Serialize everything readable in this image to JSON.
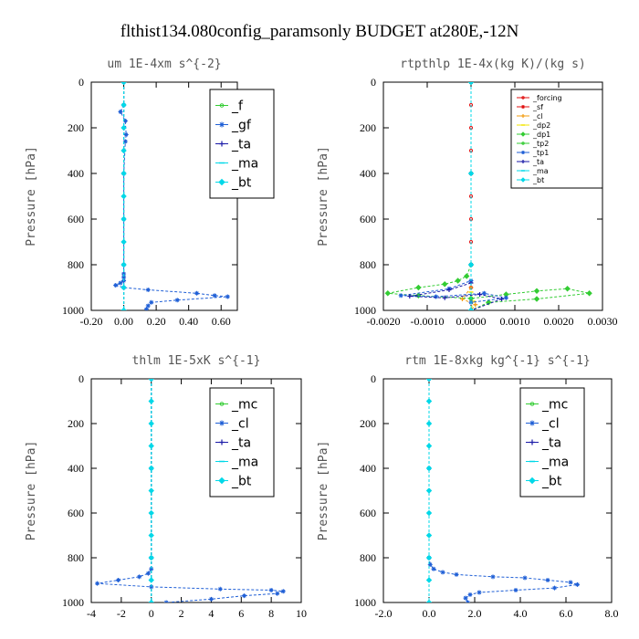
{
  "suptitle": "flthist134.080config_paramsonly  BUDGET at280E,-12N",
  "colors": {
    "green": "#33cc33",
    "blue": "#1f5fd6",
    "cyan": "#00d8e8",
    "red": "#e01010",
    "orange": "#f39c12",
    "yellow": "#f2e600",
    "navy": "#1a1aa8",
    "darkblue": "#1414c8"
  },
  "chart_data": [
    {
      "type": "line",
      "title": "um  1E-4xm s^{-2}",
      "ylabel": "Pressure [hPa]",
      "xlim": [
        -0.2,
        0.7
      ],
      "ylim": [
        1000,
        0
      ],
      "xticks": [
        -0.2,
        0.0,
        0.2,
        0.4,
        0.6
      ],
      "xtick_labels": [
        "-0.20",
        "0.00",
        "0.20",
        "0.40",
        "0.60"
      ],
      "yticks": [
        0,
        200,
        400,
        600,
        800,
        1000
      ],
      "ytick_labels": [
        "0",
        "200",
        "400",
        "600",
        "800",
        "1000"
      ],
      "legend_position": "top-right",
      "series": [
        {
          "name": "_f",
          "color": "green",
          "x": [
            0,
            0,
            0,
            0,
            0,
            0,
            0,
            0,
            0,
            0,
            0
          ],
          "y": [
            0,
            100,
            200,
            300,
            400,
            500,
            600,
            700,
            800,
            900,
            1000
          ]
        },
        {
          "name": "_gf",
          "color": "blue",
          "x": [
            0,
            0,
            -0.02,
            0.01,
            0.015,
            0.01,
            0,
            0,
            0,
            0,
            0,
            0,
            -0.02,
            -0.05,
            0.0,
            0.15,
            0.45,
            0.56,
            0.64,
            0.33,
            0.17,
            0.15,
            0.14
          ],
          "y": [
            0,
            100,
            130,
            170,
            230,
            260,
            400,
            600,
            800,
            840,
            855,
            870,
            880,
            890,
            900,
            910,
            925,
            935,
            940,
            955,
            965,
            980,
            995
          ]
        },
        {
          "name": "_ta",
          "color": "navy",
          "x": [
            0,
            0,
            0,
            0
          ],
          "y": [
            0,
            400,
            800,
            1000
          ]
        },
        {
          "name": "_ma",
          "color": "cyan",
          "x": [
            0,
            0,
            0,
            0
          ],
          "y": [
            0,
            400,
            800,
            1000
          ]
        },
        {
          "name": "_bt",
          "color": "cyan",
          "x": [
            0,
            0,
            0,
            0,
            0,
            0,
            0,
            0,
            0,
            0,
            0
          ],
          "y": [
            0,
            100,
            200,
            300,
            400,
            500,
            600,
            700,
            800,
            900,
            1000
          ]
        }
      ]
    },
    {
      "type": "line",
      "title": "rtpthlp  1E-4x(kg K)/(kg s)",
      "ylabel": "Pressure [hPa]",
      "xlim": [
        -0.002,
        0.003
      ],
      "ylim": [
        1000,
        0
      ],
      "xticks": [
        -0.002,
        -0.001,
        0.0,
        0.001,
        0.002,
        0.003
      ],
      "xtick_labels": [
        "-0.0020",
        "-0.0010",
        "0.0000",
        "0.0010",
        "0.0020",
        "0.0030"
      ],
      "yticks": [
        0,
        200,
        400,
        600,
        800,
        1000
      ],
      "ytick_labels": [
        "0",
        "200",
        "400",
        "600",
        "800",
        "1000"
      ],
      "legend_position": "top-right",
      "series": [
        {
          "name": "_forcing",
          "color": "red",
          "x": [
            0,
            0,
            0,
            0,
            0,
            0,
            0,
            0,
            0,
            0,
            0
          ],
          "y": [
            0,
            100,
            200,
            300,
            400,
            500,
            600,
            700,
            800,
            900,
            1000
          ]
        },
        {
          "name": "_sf",
          "color": "red",
          "x": [
            0,
            0,
            0,
            0
          ],
          "y": [
            0,
            400,
            800,
            1000
          ]
        },
        {
          "name": "_cl",
          "color": "orange",
          "x": [
            0,
            0,
            0,
            -0.0002,
            0.0001,
            0
          ],
          "y": [
            0,
            800,
            900,
            950,
            975,
            1000
          ]
        },
        {
          "name": "_dp2",
          "color": "yellow",
          "x": [
            0,
            0,
            0,
            5e-05,
            0
          ],
          "y": [
            0,
            800,
            920,
            960,
            1000
          ]
        },
        {
          "name": "_dp1",
          "color": "green",
          "x": [
            0,
            0,
            -0.0001,
            -0.0003,
            -0.0006,
            -0.0012,
            -0.0019,
            -0.0012,
            0.0,
            0.0008,
            0.0015,
            0.0022,
            0.0027,
            0.0015,
            0.0004,
            0.0
          ],
          "y": [
            0,
            800,
            850,
            870,
            885,
            900,
            925,
            935,
            948,
            930,
            915,
            905,
            925,
            950,
            965,
            1000
          ]
        },
        {
          "name": "_tp2",
          "color": "green",
          "x": [
            0,
            0,
            0,
            0
          ],
          "y": [
            0,
            400,
            800,
            1000
          ]
        },
        {
          "name": "_tp1",
          "color": "blue",
          "x": [
            0,
            0,
            0,
            -0.0005,
            -0.0016,
            -0.0008,
            0.0003,
            0.0008,
            0.0,
            0.0
          ],
          "y": [
            0,
            800,
            870,
            905,
            935,
            940,
            925,
            945,
            965,
            1000
          ]
        },
        {
          "name": "_ta",
          "color": "navy",
          "x": [
            0,
            0,
            0,
            -0.0005,
            -0.0014,
            -0.0006,
            0.0002,
            0.0007,
            0.0
          ],
          "y": [
            0,
            800,
            880,
            910,
            938,
            945,
            930,
            950,
            1000
          ]
        },
        {
          "name": "_ma",
          "color": "cyan",
          "x": [
            0,
            0,
            0,
            0
          ],
          "y": [
            0,
            400,
            800,
            1000
          ]
        },
        {
          "name": "_bt",
          "color": "cyan",
          "x": [
            0,
            0,
            0,
            0
          ],
          "y": [
            0,
            400,
            800,
            1000
          ]
        }
      ]
    },
    {
      "type": "line",
      "title": "thlm  1E-5xK s^{-1}",
      "ylabel": "Pressure [hPa]",
      "xlim": [
        -4,
        10
      ],
      "ylim": [
        1000,
        0
      ],
      "xticks": [
        -4,
        -2,
        0,
        2,
        4,
        6,
        8,
        10
      ],
      "xtick_labels": [
        "-4",
        "-2",
        "0",
        "2",
        "4",
        "6",
        "8",
        "10"
      ],
      "yticks": [
        0,
        200,
        400,
        600,
        800,
        1000
      ],
      "ytick_labels": [
        "0",
        "200",
        "400",
        "600",
        "800",
        "1000"
      ],
      "legend_position": "top-right",
      "series": [
        {
          "name": "_mc",
          "color": "green",
          "x": [
            0,
            0,
            0,
            0,
            0,
            0,
            0,
            0,
            0,
            0,
            0
          ],
          "y": [
            0,
            100,
            200,
            300,
            400,
            500,
            600,
            700,
            800,
            900,
            1000
          ]
        },
        {
          "name": "_cl",
          "color": "blue",
          "x": [
            0,
            0,
            0,
            0,
            -0.2,
            -0.8,
            -2.2,
            -3.6,
            0,
            4.6,
            8.0,
            8.8,
            8.4,
            6.2,
            4.0,
            1.0
          ],
          "y": [
            0,
            400,
            800,
            850,
            870,
            885,
            900,
            915,
            930,
            940,
            945,
            950,
            960,
            970,
            985,
            1000
          ]
        },
        {
          "name": "_ta",
          "color": "navy",
          "x": [
            0,
            0,
            0,
            0
          ],
          "y": [
            0,
            400,
            800,
            1000
          ]
        },
        {
          "name": "_ma",
          "color": "cyan",
          "x": [
            0,
            0,
            0,
            0
          ],
          "y": [
            0,
            400,
            800,
            1000
          ]
        },
        {
          "name": "_bt",
          "color": "cyan",
          "x": [
            0,
            0,
            0,
            0,
            0,
            0,
            0,
            0,
            0,
            0,
            0
          ],
          "y": [
            0,
            100,
            200,
            300,
            400,
            500,
            600,
            700,
            800,
            900,
            1000
          ]
        }
      ]
    },
    {
      "type": "line",
      "title": "rtm  1E-8xkg kg^{-1} s^{-1}",
      "ylabel": "Pressure [hPa]",
      "xlim": [
        -2.0,
        8.0
      ],
      "ylim": [
        1000,
        0
      ],
      "xticks": [
        -2,
        0,
        2,
        4,
        6,
        8
      ],
      "xtick_labels": [
        "-2.0",
        "0.0",
        "2.0",
        "4.0",
        "6.0",
        "8.0"
      ],
      "yticks": [
        0,
        200,
        400,
        600,
        800,
        1000
      ],
      "ytick_labels": [
        "0",
        "200",
        "400",
        "600",
        "800",
        "1000"
      ],
      "legend_position": "top-right",
      "series": [
        {
          "name": "_mc",
          "color": "green",
          "x": [
            0,
            0,
            0,
            0,
            0,
            0,
            0,
            0,
            0,
            0,
            0
          ],
          "y": [
            0,
            100,
            200,
            300,
            400,
            500,
            600,
            700,
            800,
            900,
            1000
          ]
        },
        {
          "name": "_cl",
          "color": "blue",
          "x": [
            0,
            0,
            0,
            0.05,
            0.2,
            0.6,
            1.2,
            2.8,
            4.2,
            5.2,
            6.2,
            6.5,
            5.5,
            3.8,
            2.2,
            1.8,
            1.6,
            1.7
          ],
          "y": [
            0,
            400,
            800,
            830,
            850,
            865,
            875,
            885,
            890,
            900,
            910,
            920,
            935,
            945,
            955,
            965,
            980,
            1000
          ]
        },
        {
          "name": "_ta",
          "color": "navy",
          "x": [
            0,
            0,
            0,
            0
          ],
          "y": [
            0,
            400,
            800,
            1000
          ]
        },
        {
          "name": "_ma",
          "color": "cyan",
          "x": [
            0,
            0,
            0,
            0
          ],
          "y": [
            0,
            400,
            800,
            1000
          ]
        },
        {
          "name": "_bt",
          "color": "cyan",
          "x": [
            0,
            0,
            0,
            0,
            0,
            0,
            0,
            0,
            0,
            0,
            0
          ],
          "y": [
            0,
            100,
            200,
            300,
            400,
            500,
            600,
            700,
            800,
            900,
            1000
          ]
        }
      ]
    }
  ]
}
